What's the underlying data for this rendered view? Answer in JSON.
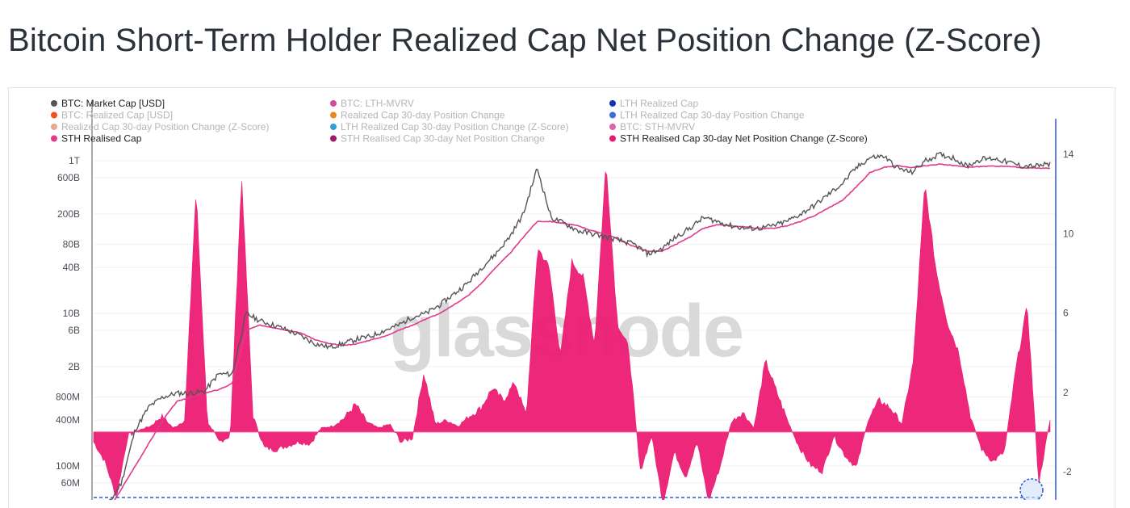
{
  "page": {
    "title": "Bitcoin Short-Term Holder Realized Cap Net Position Change (Z-Score)"
  },
  "watermark": "glassnode",
  "colors": {
    "market_cap": "#555555",
    "sth_realised_cap": "#e03a8c",
    "zscore_fill": "#ec1c74",
    "right_axis": "#2f57d6",
    "legend_active_text": "#222222",
    "legend_inactive_text": "#b5b5b5"
  },
  "chart_data": {
    "type": "area",
    "title": "Bitcoin Short-Term Holder Realized Cap Net Position Change (Z-Score)",
    "legend": [
      {
        "label": "BTC: Market Cap [USD]",
        "color": "#555555",
        "active": true
      },
      {
        "label": "BTC: LTH-MVRV",
        "color": "#d14c9c",
        "active": false
      },
      {
        "label": "LTH Realized Cap",
        "color": "#1432b4",
        "active": false
      },
      {
        "label": "BTC: Realized Cap [USD]",
        "color": "#f4511e",
        "active": false
      },
      {
        "label": "Realized Cap 30-day Position Change",
        "color": "#e8871e",
        "active": false
      },
      {
        "label": "LTH Realized Cap 30-day Position Change",
        "color": "#3d6fd8",
        "active": false
      },
      {
        "label": "Realized Cap 30-day Position Change (Z-Score)",
        "color": "#eaa98c",
        "active": false
      },
      {
        "label": "LTH Realized Cap 30-day Position Change (Z-Score)",
        "color": "#2f9fd6",
        "active": false
      },
      {
        "label": "BTC: STH-MVRV",
        "color": "#d966a8",
        "active": false
      },
      {
        "label": "STH Realised Cap",
        "color": "#e03a8c",
        "active": true
      },
      {
        "label": "STH Realised Cap 30-day Net Position Change",
        "color": "#9c1c6b",
        "active": false
      },
      {
        "label": "STH Realised Cap 30-day Net Position Change (Z-Score)",
        "color": "#e8176f",
        "active": true
      }
    ],
    "left_axis": {
      "scale": "log",
      "ticks": [
        "1T",
        "600B",
        "200B",
        "80B",
        "40B",
        "10B",
        "6B",
        "2B",
        "800M",
        "400M",
        "100M",
        "60M"
      ],
      "tick_values": [
        1000000000000.0,
        600000000000.0,
        200000000000.0,
        80000000000.0,
        40000000000.0,
        10000000000.0,
        6000000000.0,
        2000000000.0,
        800000000.0,
        400000000.0,
        100000000.0,
        60000000.0
      ]
    },
    "right_axis": {
      "scale": "linear",
      "ticks": [
        "14",
        "10",
        "6",
        "2",
        "-2"
      ],
      "tick_values": [
        14,
        10,
        6,
        2,
        -2
      ],
      "ylim": [
        -3.5,
        15.5
      ]
    },
    "series": [
      {
        "name": "BTC: Market Cap [USD]",
        "axis": "left",
        "values": [
          25000000.0,
          30000000.0,
          60000000.0,
          300000000.0,
          600000000.0,
          800000000.0,
          900000000.0,
          900000000.0,
          950000000.0,
          1600000000.0,
          1600000000.0,
          10000000000.0,
          8000000000.0,
          7000000000.0,
          6000000000.0,
          5000000000.0,
          4000000000.0,
          3600000000.0,
          4000000000.0,
          4600000000.0,
          5000000000.0,
          6000000000.0,
          7000000000.0,
          9000000000.0,
          10000000000.0,
          13000000000.0,
          18000000000.0,
          25000000000.0,
          40000000000.0,
          60000000000.0,
          100000000000.0,
          200000000000.0,
          800000000000.0,
          180000000000.0,
          150000000000.0,
          120000000000.0,
          110000000000.0,
          100000000000.0,
          90000000000.0,
          80000000000.0,
          60000000000.0,
          70000000000.0,
          100000000000.0,
          130000000000.0,
          180000000000.0,
          160000000000.0,
          140000000000.0,
          130000000000.0,
          130000000000.0,
          140000000000.0,
          160000000000.0,
          200000000000.0,
          260000000000.0,
          360000000000.0,
          500000000000.0,
          800000000000.0,
          1100000000000.0,
          1150000000000.0,
          800000000000.0,
          700000000000.0,
          1000000000000.0,
          1200000000000.0,
          1100000000000.0,
          850000000000.0,
          1050000000000.0,
          1070000000000.0,
          950000000000.0,
          850000000000.0,
          850000000000.0,
          900000000000.0
        ]
      },
      {
        "name": "STH Realised Cap",
        "axis": "left",
        "values": [
          15000000.0,
          25000000.0,
          50000000.0,
          100000000.0,
          200000000.0,
          400000000.0,
          700000000.0,
          800000000.0,
          900000000.0,
          1000000000.0,
          1200000000.0,
          6000000000.0,
          7000000000.0,
          6500000000.0,
          6000000000.0,
          5500000000.0,
          4500000000.0,
          4000000000.0,
          3800000000.0,
          4000000000.0,
          4500000000.0,
          5000000000.0,
          6000000000.0,
          7000000000.0,
          8500000000.0,
          10000000000.0,
          13000000000.0,
          17000000000.0,
          25000000000.0,
          40000000000.0,
          60000000000.0,
          100000000000.0,
          160000000000.0,
          160000000000.0,
          150000000000.0,
          140000000000.0,
          120000000000.0,
          110000000000.0,
          90000000000.0,
          75000000000.0,
          65000000000.0,
          65000000000.0,
          80000000000.0,
          100000000000.0,
          130000000000.0,
          145000000000.0,
          140000000000.0,
          135000000000.0,
          130000000000.0,
          130000000000.0,
          140000000000.0,
          160000000000.0,
          190000000000.0,
          240000000000.0,
          300000000000.0,
          450000000000.0,
          700000000000.0,
          820000000000.0,
          860000000000.0,
          810000000000.0,
          860000000000.0,
          900000000000.0,
          870000000000.0,
          820000000000.0,
          840000000000.0,
          850000000000.0,
          840000000000.0,
          810000000000.0,
          800000000000.0,
          800000000000.0
        ]
      },
      {
        "name": "STH Realised Cap 30-day Net Position Change (Z-Score)",
        "axis": "right",
        "values": [
          -0.5,
          -1.5,
          -3.3,
          -0.2,
          0.1,
          0.3,
          0.8,
          0.2,
          0.6,
          12.2,
          0.5,
          -0.5,
          -0.2,
          12.9,
          0.8,
          -0.8,
          -0.9,
          -0.7,
          -0.5,
          -0.6,
          0.2,
          0.3,
          0.7,
          1.4,
          0.5,
          0.2,
          0.4,
          -0.5,
          -0.3,
          3,
          0.4,
          0.6,
          0.3,
          0.8,
          1.2,
          2.2,
          1.6,
          2.5,
          0.8,
          9.3,
          8.3,
          3.8,
          8.6,
          7.8,
          4.4,
          13.6,
          5.5,
          4.2,
          -2,
          -0.2,
          -3.6,
          -1,
          -2.3,
          -0.5,
          -3.5,
          -1.8,
          0.5,
          1,
          0.2,
          3.6,
          2,
          0.5,
          -0.8,
          -1.7,
          -2,
          -0.2,
          -1.2,
          -1.8,
          0.6,
          1.6,
          1.2,
          0.4,
          3.6,
          12.5,
          8.1,
          5.5,
          4,
          0.8,
          -0.9,
          -1.5,
          -1,
          3.2,
          6.4,
          -2.6,
          0.6
        ]
      }
    ],
    "annotations": [
      "dashed marker line at the -3.5 Z-Score level",
      "dashed circle marker at the latest negative extreme"
    ]
  }
}
